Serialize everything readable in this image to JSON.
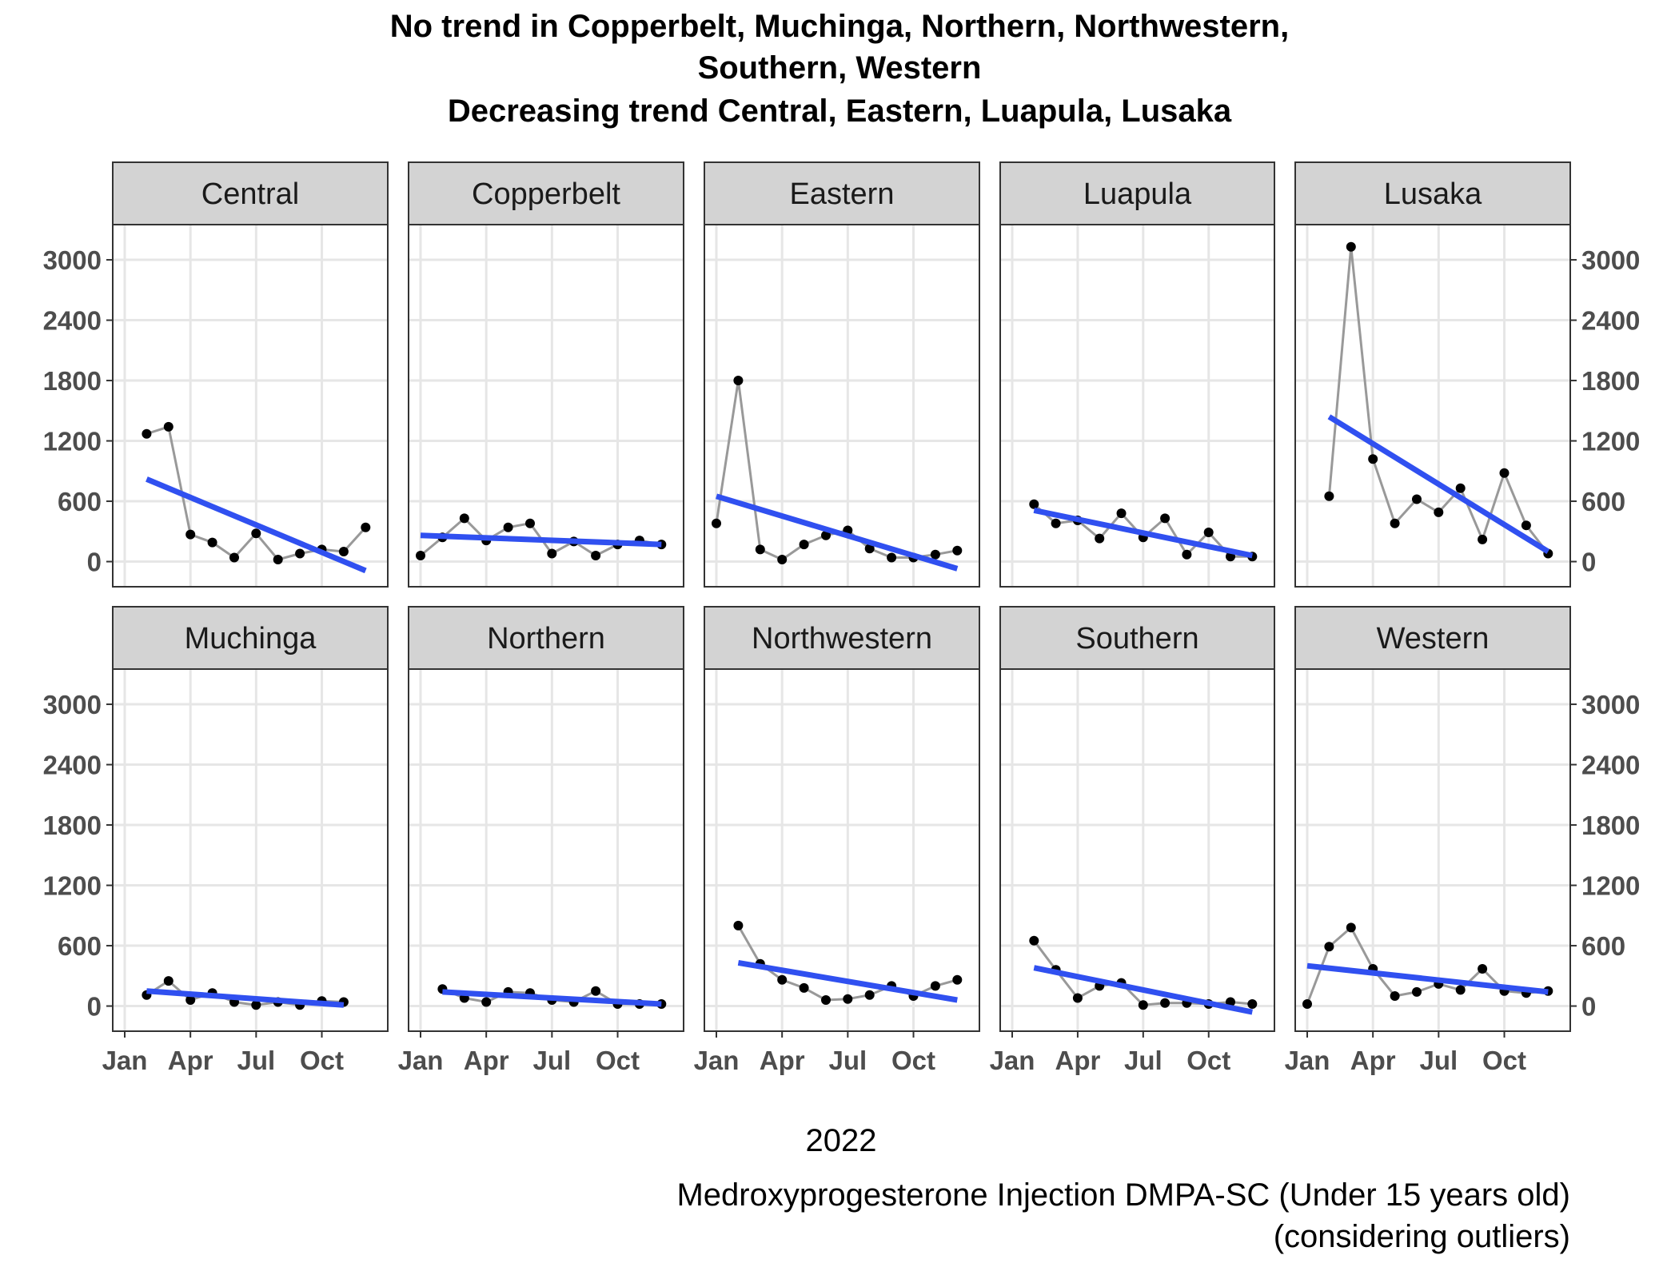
{
  "chart_data": {
    "type": "line",
    "title_lines": [
      "No trend in Copperbelt, Muchinga, Northern, Northwestern,",
      "Southern, Western",
      "Decreasing trend Central, Eastern, Luapula, Lusaka"
    ],
    "xlabel": "2022",
    "caption_lines": [
      "Medroxyprogesterone Injection DMPA-SC (Under 15 years old)",
      "(considering outliers)"
    ],
    "x_ticks": [
      "Jan",
      "Apr",
      "Jul",
      "Oct"
    ],
    "y_ticks": [
      0,
      600,
      1200,
      1800,
      2400,
      3000
    ],
    "ylim": [
      -250,
      3350
    ],
    "months": [
      "2022-01",
      "2022-02",
      "2022-03",
      "2022-04",
      "2022-05",
      "2022-06",
      "2022-07",
      "2022-08",
      "2022-09",
      "2022-10",
      "2022-11",
      "2022-12"
    ],
    "colors": {
      "raw_line": "#999999",
      "point": "#000000",
      "trend": "#3050f0",
      "strip": "#d3d3d3",
      "grid": "#e6e6e6"
    },
    "facets": [
      {
        "name": "Central",
        "months": [
          "2022-02",
          "2022-03",
          "2022-04",
          "2022-05",
          "2022-06",
          "2022-07",
          "2022-08",
          "2022-09",
          "2022-10",
          "2022-11",
          "2022-12"
        ],
        "values": [
          1270,
          1340,
          270,
          190,
          40,
          280,
          20,
          80,
          120,
          100,
          340
        ],
        "trend": [
          820,
          -90
        ]
      },
      {
        "name": "Copperbelt",
        "months": [
          "2022-01",
          "2022-02",
          "2022-03",
          "2022-04",
          "2022-05",
          "2022-06",
          "2022-07",
          "2022-08",
          "2022-09",
          "2022-10",
          "2022-11",
          "2022-12"
        ],
        "values": [
          60,
          240,
          430,
          210,
          340,
          380,
          80,
          200,
          60,
          170,
          210,
          170
        ],
        "trend": [
          260,
          170
        ]
      },
      {
        "name": "Eastern",
        "months": [
          "2022-01",
          "2022-02",
          "2022-03",
          "2022-04",
          "2022-05",
          "2022-06",
          "2022-07",
          "2022-08",
          "2022-09",
          "2022-10",
          "2022-11",
          "2022-12"
        ],
        "values": [
          380,
          1800,
          120,
          20,
          170,
          260,
          310,
          130,
          40,
          40,
          70,
          110
        ],
        "trend": [
          650,
          -70
        ]
      },
      {
        "name": "Luapula",
        "months": [
          "2022-02",
          "2022-03",
          "2022-04",
          "2022-05",
          "2022-06",
          "2022-07",
          "2022-08",
          "2022-09",
          "2022-10",
          "2022-11",
          "2022-12"
        ],
        "values": [
          570,
          380,
          410,
          230,
          480,
          240,
          430,
          70,
          290,
          50,
          50
        ],
        "trend": [
          510,
          60
        ]
      },
      {
        "name": "Lusaka",
        "months": [
          "2022-02",
          "2022-03",
          "2022-04",
          "2022-05",
          "2022-06",
          "2022-07",
          "2022-08",
          "2022-09",
          "2022-10",
          "2022-11",
          "2022-12"
        ],
        "values": [
          650,
          3130,
          1020,
          380,
          620,
          490,
          730,
          220,
          880,
          360,
          80
        ],
        "trend": [
          1440,
          100
        ]
      },
      {
        "name": "Muchinga",
        "months": [
          "2022-02",
          "2022-03",
          "2022-04",
          "2022-05",
          "2022-06",
          "2022-07",
          "2022-08",
          "2022-09",
          "2022-10",
          "2022-11"
        ],
        "values": [
          110,
          250,
          60,
          130,
          40,
          10,
          40,
          10,
          50,
          40
        ],
        "trend": [
          150,
          10
        ]
      },
      {
        "name": "Northern",
        "months": [
          "2022-02",
          "2022-03",
          "2022-04",
          "2022-05",
          "2022-06",
          "2022-07",
          "2022-08",
          "2022-09",
          "2022-10",
          "2022-11",
          "2022-12"
        ],
        "values": [
          170,
          80,
          40,
          140,
          130,
          60,
          40,
          150,
          20,
          20,
          20
        ],
        "trend": [
          140,
          20
        ]
      },
      {
        "name": "Northwestern",
        "months": [
          "2022-02",
          "2022-03",
          "2022-04",
          "2022-05",
          "2022-06",
          "2022-07",
          "2022-08",
          "2022-09",
          "2022-10",
          "2022-11",
          "2022-12"
        ],
        "values": [
          800,
          420,
          260,
          180,
          60,
          70,
          110,
          200,
          100,
          200,
          260
        ],
        "trend": [
          430,
          60
        ]
      },
      {
        "name": "Southern",
        "months": [
          "2022-02",
          "2022-03",
          "2022-04",
          "2022-05",
          "2022-06",
          "2022-07",
          "2022-08",
          "2022-09",
          "2022-10",
          "2022-11",
          "2022-12"
        ],
        "values": [
          650,
          360,
          80,
          200,
          230,
          10,
          30,
          30,
          20,
          40,
          20
        ],
        "trend": [
          380,
          -60
        ]
      },
      {
        "name": "Western",
        "months": [
          "2022-01",
          "2022-02",
          "2022-03",
          "2022-04",
          "2022-05",
          "2022-06",
          "2022-07",
          "2022-08",
          "2022-09",
          "2022-10",
          "2022-11",
          "2022-12"
        ],
        "values": [
          20,
          590,
          780,
          370,
          100,
          140,
          220,
          160,
          370,
          150,
          130,
          150
        ],
        "trend": [
          400,
          140
        ]
      }
    ],
    "grid": true,
    "legend": "none"
  }
}
